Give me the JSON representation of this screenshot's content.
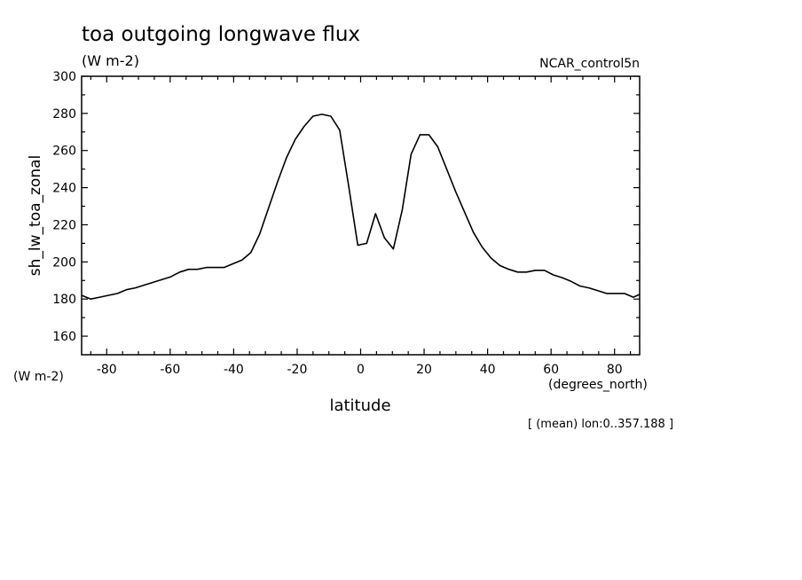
{
  "chart_data": {
    "type": "line",
    "title": "toa outgoing longwave flux",
    "subtitle": "(W m-2)",
    "source_label": "NCAR_control5n",
    "xlabel": "latitude",
    "x_units": "(degrees_north)",
    "ylabel": "sh_lw_toa_zonal",
    "y_units": "(W m-2)",
    "footer": "[ (mean) lon:0..357.188 ]",
    "xlim": [
      -87.9,
      87.9
    ],
    "ylim": [
      150,
      300
    ],
    "x_ticks": [
      -80,
      -60,
      -40,
      -20,
      0,
      20,
      40,
      60,
      80
    ],
    "x_tick_labels": [
      "-80",
      "-60",
      "-40",
      "-20",
      "0",
      "20",
      "40",
      "60",
      "80"
    ],
    "y_ticks": [
      160,
      180,
      200,
      220,
      240,
      260,
      280,
      300
    ],
    "y_tick_labels": [
      "160",
      "180",
      "200",
      "220",
      "240",
      "260",
      "280",
      "300"
    ],
    "grid": false,
    "x": [
      -87.9,
      -85,
      -82.2,
      -79.4,
      -76.6,
      -73.8,
      -71,
      -68.2,
      -65.4,
      -62.6,
      -59.8,
      -57,
      -54.2,
      -51.4,
      -48.6,
      -45.8,
      -43,
      -40.2,
      -37.4,
      -34.6,
      -31.8,
      -29,
      -26.2,
      -23.4,
      -20.6,
      -17.8,
      -15,
      -12.2,
      -9.4,
      -6.6,
      -3.7,
      -0.9,
      1.9,
      4.7,
      7.5,
      10.3,
      13.1,
      15.9,
      18.7,
      21.5,
      24.3,
      27.1,
      29.9,
      32.7,
      35.5,
      38.3,
      41.1,
      43.9,
      46.7,
      49.5,
      52.3,
      55.1,
      57.9,
      60.7,
      63.5,
      66.3,
      69.1,
      71.9,
      74.7,
      77.5,
      80.3,
      83.1,
      85.9,
      87.9
    ],
    "series": [
      {
        "values": [
          182,
          180,
          181,
          182,
          183,
          185,
          186,
          187.5,
          189,
          190.5,
          192,
          194.5,
          196,
          196,
          197,
          197,
          197,
          199,
          201,
          205,
          215,
          229,
          243,
          256,
          266,
          273,
          278.5,
          279.5,
          278.5,
          271,
          240,
          209,
          210,
          226,
          213,
          207,
          228,
          258,
          268.5,
          268.5,
          262,
          250,
          238,
          227,
          216,
          208,
          202,
          198,
          196,
          194.5,
          194.5,
          195.5,
          195.5,
          193,
          191.5,
          189.5,
          187,
          186,
          184.5,
          183,
          183,
          183,
          181,
          182.5
        ]
      }
    ]
  }
}
